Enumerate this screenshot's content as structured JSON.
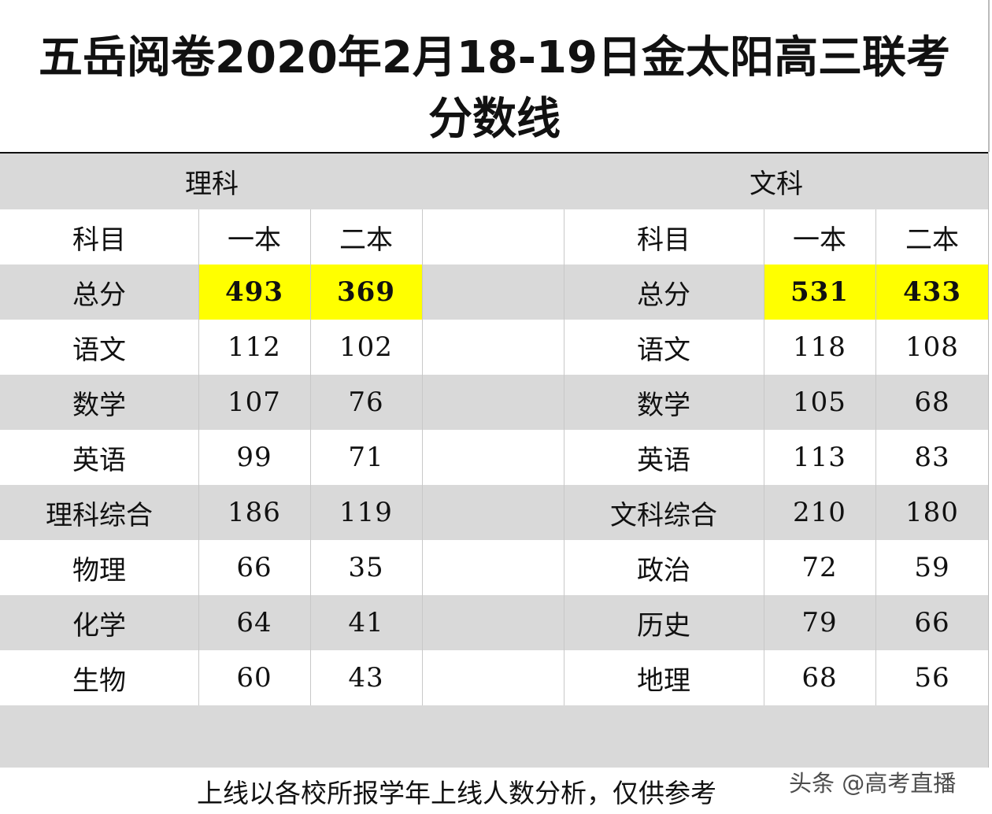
{
  "title": {
    "line1": "五岳阅卷2020年2月18-19日金太阳高三联考",
    "line2": "分数线"
  },
  "science": {
    "label": "理科",
    "header": [
      "科目",
      "一本",
      "二本"
    ],
    "rows": [
      {
        "subject": "总分",
        "tier1": "493",
        "tier2": "369"
      },
      {
        "subject": "语文",
        "tier1": "112",
        "tier2": "102"
      },
      {
        "subject": "数学",
        "tier1": "107",
        "tier2": "76"
      },
      {
        "subject": "英语",
        "tier1": "99",
        "tier2": "71"
      },
      {
        "subject": "理科综合",
        "tier1": "186",
        "tier2": "119"
      },
      {
        "subject": "物理",
        "tier1": "66",
        "tier2": "35"
      },
      {
        "subject": "化学",
        "tier1": "64",
        "tier2": "41"
      },
      {
        "subject": "生物",
        "tier1": "60",
        "tier2": "43"
      }
    ]
  },
  "arts": {
    "label": "文科",
    "header": [
      "科目",
      "一本",
      "二本"
    ],
    "rows": [
      {
        "subject": "总分",
        "tier1": "531",
        "tier2": "433"
      },
      {
        "subject": "语文",
        "tier1": "118",
        "tier2": "108"
      },
      {
        "subject": "数学",
        "tier1": "105",
        "tier2": "68"
      },
      {
        "subject": "英语",
        "tier1": "113",
        "tier2": "83"
      },
      {
        "subject": "文科综合",
        "tier1": "210",
        "tier2": "180"
      },
      {
        "subject": "政治",
        "tier1": "72",
        "tier2": "59"
      },
      {
        "subject": "历史",
        "tier1": "79",
        "tier2": "66"
      },
      {
        "subject": "地理",
        "tier1": "68",
        "tier2": "56"
      }
    ]
  },
  "footer": {
    "note": "上线以各校所报学年上线人数分析，仅供参考",
    "watermark": "头条 @高考直播"
  },
  "colors": {
    "band_gray": "#d9d9d9",
    "highlight": "#ffff00"
  }
}
